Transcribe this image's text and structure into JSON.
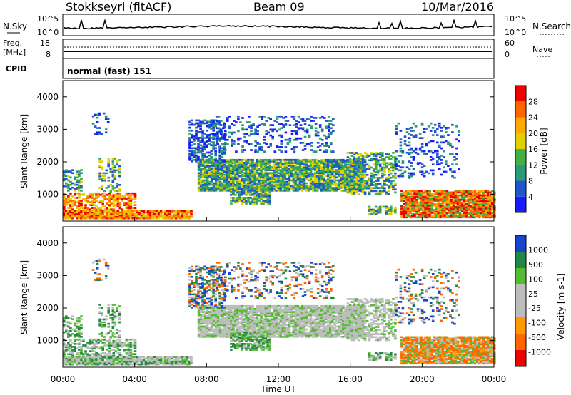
{
  "header": {
    "station": "Stokkseyri (fitACF)",
    "beam": "Beam 09",
    "date": "10/Mar/2016"
  },
  "strip": {
    "nsky_label": "N.Sky",
    "nsky_ticks": [
      "10^5",
      "10^0"
    ],
    "nsearch_label": "N.Search",
    "nsearch_ticks": [
      "10^5",
      "10^0"
    ],
    "freq_label": "Freq.",
    "freq_unit": "[MHz]",
    "freq_ticks": [
      "18",
      "8"
    ],
    "nave_label": "Nave",
    "nave_ticks": [
      "60",
      "0"
    ],
    "cpid_label": "CPID",
    "cpid_text": "normal (fast) 151"
  },
  "colors": {
    "power": [
      "#1a1aff",
      "#2255cc",
      "#2a9a7a",
      "#44b044",
      "#e0d000",
      "#ffaa00",
      "#ff6600",
      "#ee0000"
    ],
    "velocity": [
      "#ee0000",
      "#ff6600",
      "#ff9900",
      "#bdbdbd",
      "#bdbdbd",
      "#55bb33",
      "#228844",
      "#1a44cc"
    ],
    "grey": "#bdbdbd"
  },
  "chart_data": [
    {
      "type": "heatmap",
      "name": "power",
      "xlabel": "Time UT",
      "ylabel": "Slant Range [km]",
      "x_ticks": [
        "00:00",
        "04:00",
        "08:00",
        "12:00",
        "16:00",
        "20:00",
        "00:00"
      ],
      "y_ticks": [
        1000,
        2000,
        3000,
        4000
      ],
      "ylim": [
        180,
        4500
      ],
      "colorbar": {
        "label": "Power [dB]",
        "ticks": [
          4,
          8,
          12,
          16,
          20,
          24,
          28
        ],
        "range": [
          0,
          32
        ]
      }
    },
    {
      "type": "heatmap",
      "name": "velocity",
      "xlabel": "Time UT",
      "ylabel": "Slant Range [km]",
      "x_ticks": [
        "00:00",
        "04:00",
        "08:00",
        "12:00",
        "16:00",
        "20:00",
        "00:00"
      ],
      "y_ticks": [
        1000,
        2000,
        3000,
        4000
      ],
      "ylim": [
        180,
        4500
      ],
      "colorbar": {
        "label": "Velocity [m s-1]",
        "ticks": [
          1000,
          500,
          100,
          25,
          -25,
          -100,
          -500,
          -1000
        ]
      }
    }
  ]
}
